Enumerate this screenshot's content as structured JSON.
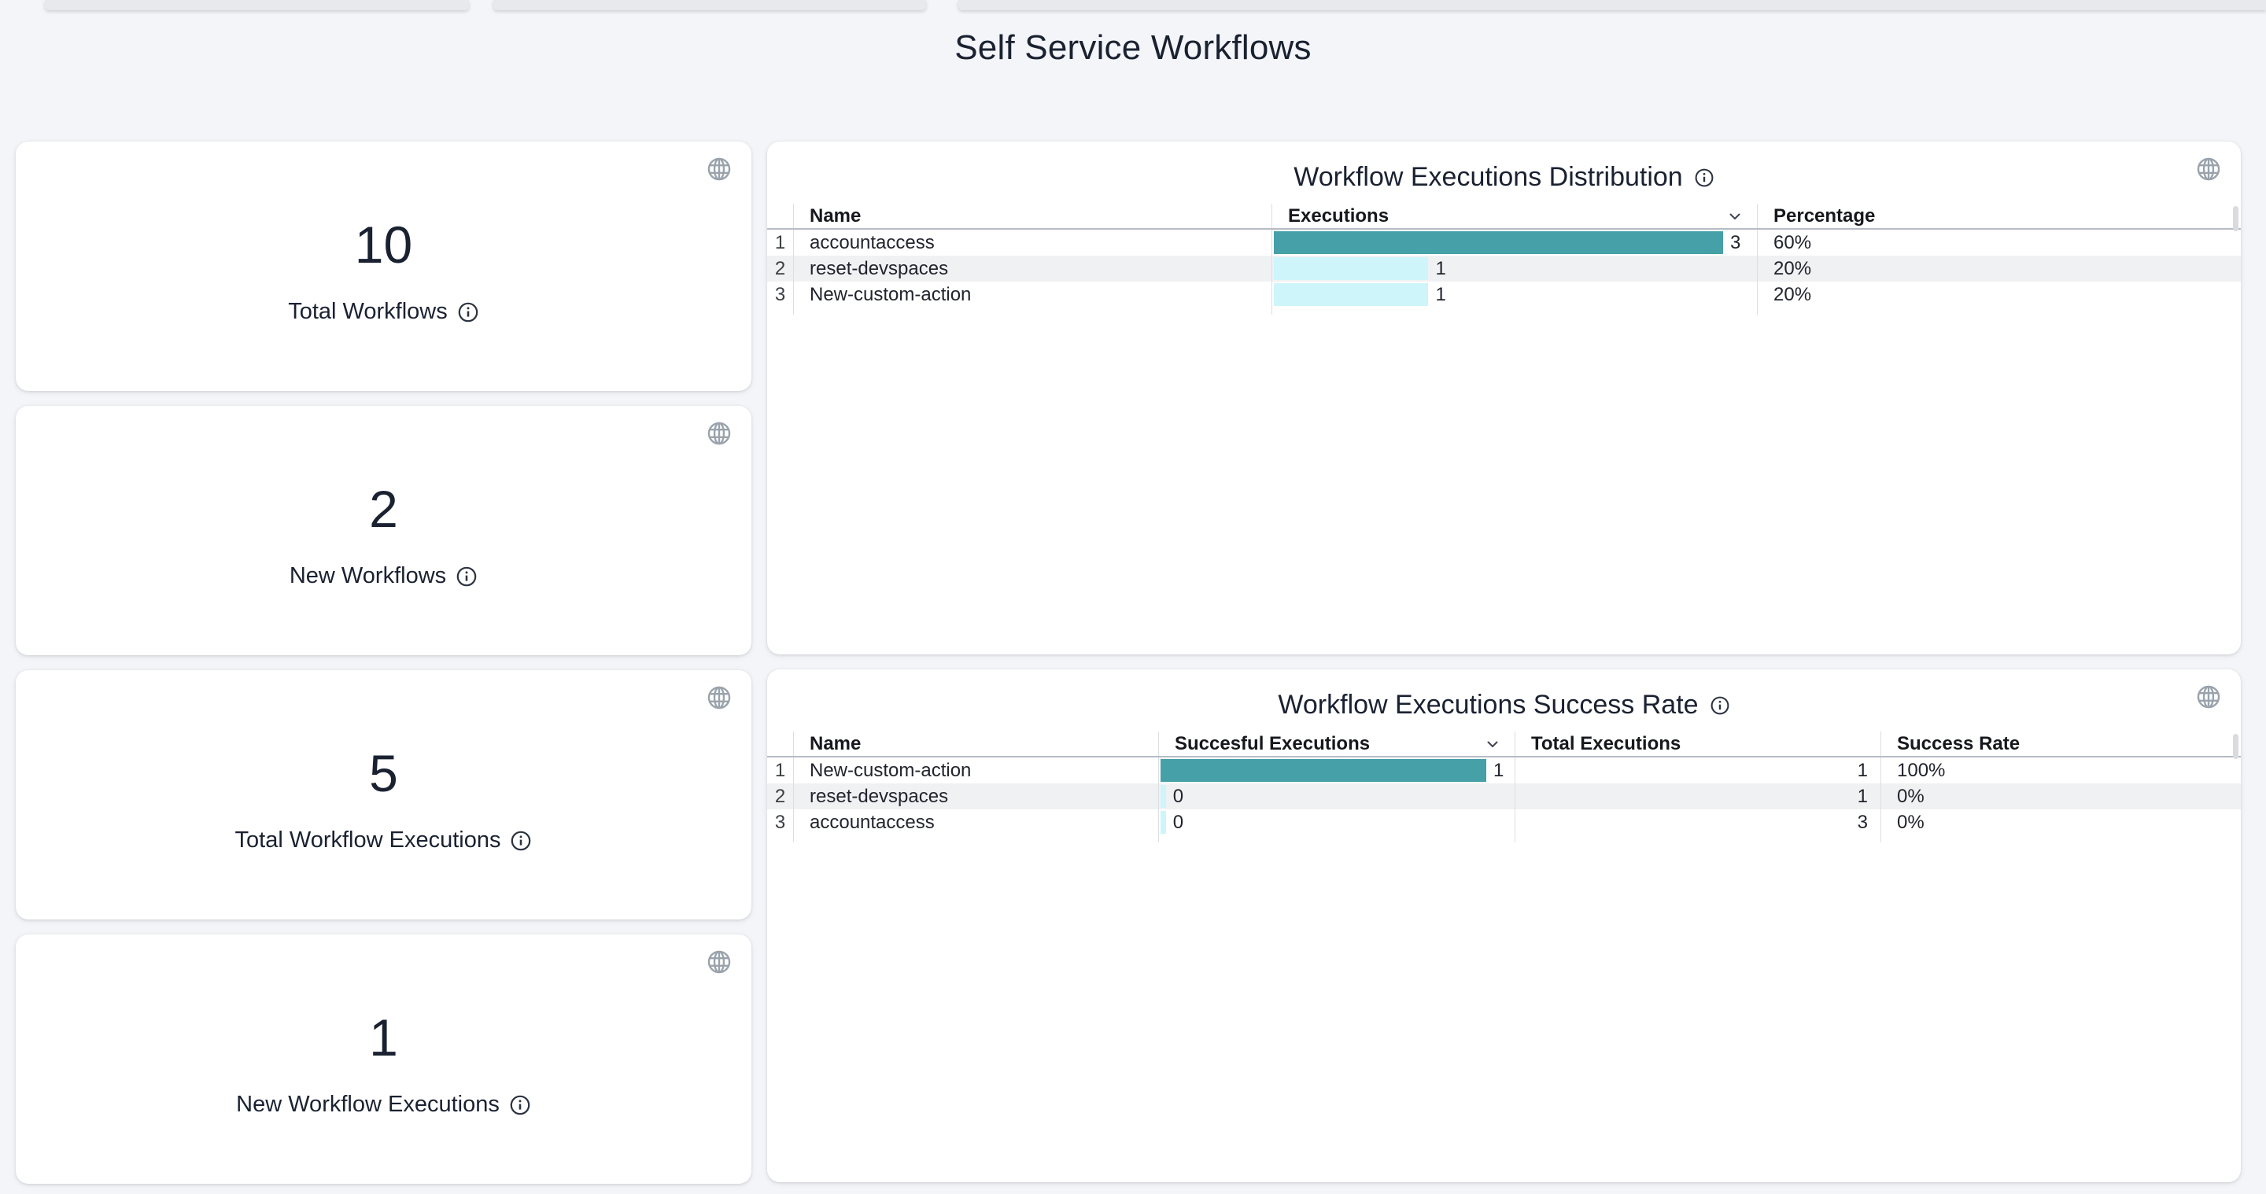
{
  "colors": {
    "page_bg": "#f4f5f8",
    "card_bg": "#ffffff",
    "navy": "#1a2130",
    "text": "#21242c",
    "accent_teal": "#46a0a8",
    "accent_cyan": "#cdf5fa",
    "stripe": "#f0f1f2",
    "separator": "#dcdee1",
    "header_border": "#b6bcc4",
    "icon_gray": "#9aa2ac"
  },
  "page": {
    "title": "Self Service Workflows"
  },
  "icons": {
    "card_action": "globe-icon",
    "label_help": "info-icon",
    "sort_indicator": "chevron-down-icon"
  },
  "stat_cards": [
    {
      "value": "10",
      "label": "Total Workflows"
    },
    {
      "value": "2",
      "label": "New Workflows"
    },
    {
      "value": "5",
      "label": "Total Workflow Executions"
    },
    {
      "value": "1",
      "label": "New Workflow Executions"
    }
  ],
  "tables": [
    {
      "title": "Workflow Executions Distribution",
      "columns": [
        "Name",
        "Executions",
        "Percentage"
      ],
      "sort": {
        "column": "Executions",
        "direction": "desc"
      },
      "rows": [
        {
          "index": "1",
          "name": "accountaccess",
          "executions": "3",
          "bar_pct": 93,
          "bar_color": "teal",
          "percentage": "60%"
        },
        {
          "index": "2",
          "name": "reset-devspaces",
          "executions": "1",
          "bar_pct": 32,
          "bar_color": "cyan",
          "percentage": "20%"
        },
        {
          "index": "3",
          "name": "New-custom-action",
          "executions": "1",
          "bar_pct": 32,
          "bar_color": "cyan",
          "percentage": "20%"
        }
      ]
    },
    {
      "title": "Workflow Executions Success Rate",
      "columns": [
        "Name",
        "Succesful Executions",
        "Total Executions",
        "Success Rate"
      ],
      "sort": {
        "column": "Succesful Executions",
        "direction": "desc"
      },
      "rows": [
        {
          "index": "1",
          "name": "New-custom-action",
          "successful": "1",
          "bar_pct": 92,
          "bar_color": "teal",
          "total": "1",
          "success_rate": "100%"
        },
        {
          "index": "2",
          "name": "reset-devspaces",
          "successful": "0",
          "bar_pct": 1.5,
          "bar_color": "cyan",
          "total": "1",
          "success_rate": "0%"
        },
        {
          "index": "3",
          "name": "accountaccess",
          "successful": "0",
          "bar_pct": 1.5,
          "bar_color": "cyan",
          "total": "3",
          "success_rate": "0%"
        }
      ]
    }
  ],
  "chart_data": [
    {
      "type": "bar",
      "title": "Workflow Executions Distribution",
      "categories": [
        "accountaccess",
        "reset-devspaces",
        "New-custom-action"
      ],
      "values": [
        3,
        1,
        1
      ],
      "percentages": [
        "60%",
        "20%",
        "20%"
      ],
      "orientation": "horizontal"
    },
    {
      "type": "bar",
      "title": "Workflow Executions Success Rate",
      "categories": [
        "New-custom-action",
        "reset-devspaces",
        "accountaccess"
      ],
      "series": [
        {
          "name": "Succesful Executions",
          "values": [
            1,
            0,
            0
          ]
        },
        {
          "name": "Total Executions",
          "values": [
            1,
            1,
            3
          ]
        }
      ],
      "success_rate": [
        "100%",
        "0%",
        "0%"
      ],
      "orientation": "horizontal"
    }
  ]
}
